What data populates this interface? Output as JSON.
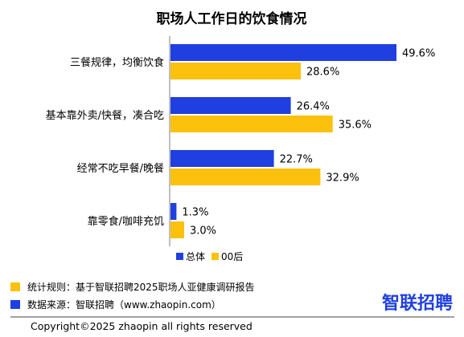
{
  "chart_data": {
    "type": "bar",
    "orientation": "horizontal",
    "title": "职场人工作日的饮食情况",
    "categories": [
      "三餐规律，均衡饮食",
      "基本靠外卖/快餐，凑合吃",
      "经常不吃早餐/晚餐",
      "靠零食/咖啡充饥"
    ],
    "series": [
      {
        "name": "总体",
        "values": [
          49.6,
          26.4,
          22.7,
          1.3
        ],
        "color": "#1f3fe0"
      },
      {
        "name": "00后",
        "values": [
          28.6,
          35.6,
          32.9,
          3.0
        ],
        "color": "#fcc10c"
      }
    ],
    "value_suffix": "%",
    "xlim": [
      0,
      50
    ],
    "grid": false,
    "legend_position": "bottom-center"
  },
  "footer": {
    "stat_rule": "统计规则：基于智联招聘2025职场人亚健康调研报告",
    "data_source": "数据来源：智联招聘（www.zhaopin.com）",
    "brand": "智联招聘",
    "copyright": "Copyright©2025 zhaopin all rights reserved",
    "stat_rule_color": "#fcc10c",
    "data_source_color": "#1f3fe0",
    "brand_color": "#1f3fe0"
  }
}
